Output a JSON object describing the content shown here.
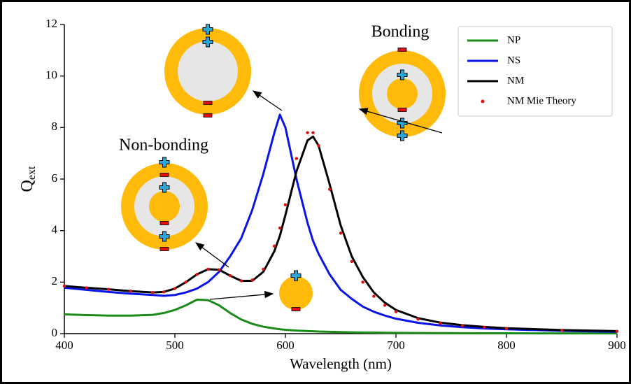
{
  "chart_data": {
    "type": "line",
    "xlabel": "Wavelength (nm)",
    "ylabel": {
      "main": "Q",
      "sub": "ext"
    },
    "annotations": [
      "Bonding",
      "Non-bonding"
    ],
    "x": [
      400,
      420,
      440,
      460,
      480,
      490,
      500,
      510,
      520,
      530,
      540,
      550,
      560,
      570,
      580,
      590,
      595,
      600,
      610,
      620,
      625,
      630,
      640,
      650,
      660,
      670,
      680,
      690,
      700,
      720,
      740,
      760,
      780,
      800,
      850,
      900
    ],
    "series": [
      {
        "name": "NP",
        "color": "#1a8a1a",
        "style": "line",
        "values": [
          0.75,
          0.72,
          0.7,
          0.7,
          0.73,
          0.8,
          0.92,
          1.1,
          1.32,
          1.3,
          1.1,
          0.8,
          0.55,
          0.38,
          0.27,
          0.2,
          0.17,
          0.15,
          0.12,
          0.1,
          0.09,
          0.08,
          0.07,
          0.06,
          0.05,
          0.045,
          0.04,
          0.035,
          0.03,
          0.025,
          0.02,
          0.018,
          0.015,
          0.013,
          0.01,
          0.01
        ]
      },
      {
        "name": "NS",
        "color": "#0a14e6",
        "style": "line",
        "values": [
          1.78,
          1.7,
          1.62,
          1.55,
          1.5,
          1.47,
          1.5,
          1.6,
          1.75,
          2.0,
          2.4,
          3.0,
          3.7,
          4.8,
          6.2,
          7.8,
          8.5,
          8.0,
          6.0,
          4.3,
          3.6,
          3.1,
          2.3,
          1.7,
          1.35,
          1.05,
          0.85,
          0.7,
          0.58,
          0.42,
          0.32,
          0.25,
          0.2,
          0.17,
          0.11,
          0.07
        ]
      },
      {
        "name": "NM",
        "color": "#000000",
        "style": "line",
        "values": [
          1.85,
          1.78,
          1.72,
          1.65,
          1.6,
          1.62,
          1.75,
          2.0,
          2.3,
          2.5,
          2.48,
          2.25,
          2.05,
          2.05,
          2.4,
          3.2,
          3.8,
          4.6,
          6.3,
          7.5,
          7.65,
          7.3,
          5.8,
          4.2,
          3.0,
          2.2,
          1.6,
          1.2,
          0.92,
          0.6,
          0.43,
          0.33,
          0.26,
          0.21,
          0.14,
          0.1
        ]
      },
      {
        "name": "NM Mie Theory",
        "color": "#e01010",
        "style": "dots",
        "values": [
          1.85,
          1.78,
          1.72,
          1.65,
          1.6,
          1.62,
          1.75,
          2.0,
          2.3,
          2.5,
          2.48,
          2.25,
          2.05,
          2.08,
          2.5,
          3.4,
          4.1,
          5.0,
          6.8,
          7.8,
          7.8,
          7.3,
          5.6,
          3.9,
          2.8,
          2.0,
          1.45,
          1.1,
          0.85,
          0.56,
          0.4,
          0.31,
          0.25,
          0.2,
          0.13,
          0.09
        ]
      }
    ],
    "xlim": [
      400,
      900
    ],
    "xticks": [
      400,
      500,
      600,
      700,
      800,
      900
    ],
    "ylim": [
      0,
      12
    ],
    "yticks": [
      0,
      2,
      4,
      6,
      8,
      10,
      12
    ],
    "legend": "upper right"
  }
}
